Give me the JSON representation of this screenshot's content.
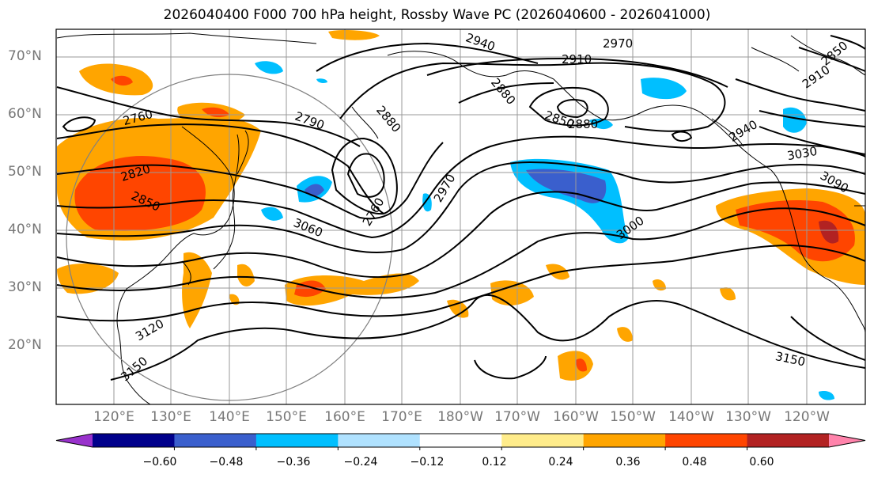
{
  "title": "2026040400 F000 700 hPa height, Rossby Wave PC (2026040600 - 2026041000)",
  "lat_labels": [
    "70°N",
    "60°N",
    "50°N",
    "40°N",
    "30°N",
    "20°N"
  ],
  "lon_labels": [
    "120°E",
    "130°E",
    "140°E",
    "150°E",
    "160°E",
    "170°E",
    "180°W",
    "170°W",
    "160°W",
    "150°W",
    "140°W",
    "130°W",
    "120°W"
  ],
  "contour_labels": [
    "2760",
    "2790",
    "2820",
    "2850",
    "2880",
    "2940",
    "2910",
    "2970",
    "2880",
    "2850",
    "2880",
    "2760",
    "2970",
    "2940",
    "3030",
    "3090",
    "3000",
    "3060",
    "3120",
    "3150",
    "3150",
    "2850",
    "2910"
  ],
  "colorbar": {
    "ticks": [
      "−0.60",
      "−0.48",
      "−0.36",
      "−0.24",
      "−0.12",
      "0.12",
      "0.24",
      "0.36",
      "0.48",
      "0.60"
    ],
    "colors": [
      "#9932cc",
      "#00008b",
      "#3a5fcd",
      "#00bfff",
      "#b0e2ff",
      "#ffffff",
      "#ffec8b",
      "#ffa500",
      "#ff4500",
      "#b22222",
      "#ff83ab"
    ]
  }
}
